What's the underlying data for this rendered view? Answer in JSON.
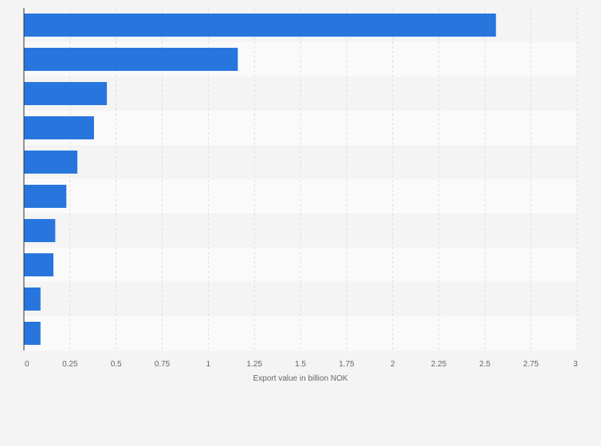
{
  "chart_data": {
    "type": "bar",
    "orientation": "horizontal",
    "categories": [
      "",
      "",
      "",
      "",
      "",
      "",
      "",
      "",
      "",
      ""
    ],
    "values": [
      2.56,
      1.16,
      0.45,
      0.38,
      0.29,
      0.23,
      0.17,
      0.16,
      0.09,
      0.09
    ],
    "title": "",
    "xlabel": "Export value in billion NOK",
    "ylabel": "",
    "xlim": [
      0,
      3
    ],
    "xticks": [
      "0",
      "0.25",
      "0.5",
      "0.75",
      "1",
      "1.25",
      "1.5",
      "1.75",
      "2",
      "2.25",
      "2.5",
      "2.75",
      "3"
    ],
    "grid": true,
    "legend": "none",
    "colors": {
      "bar": "#2876dd",
      "page_bg": "#f4f4f4",
      "band_light": "#fafafa",
      "band_dark": "#f4f4f4",
      "grid": "#dddddd",
      "axis": "#333333",
      "text": "#666666"
    }
  }
}
